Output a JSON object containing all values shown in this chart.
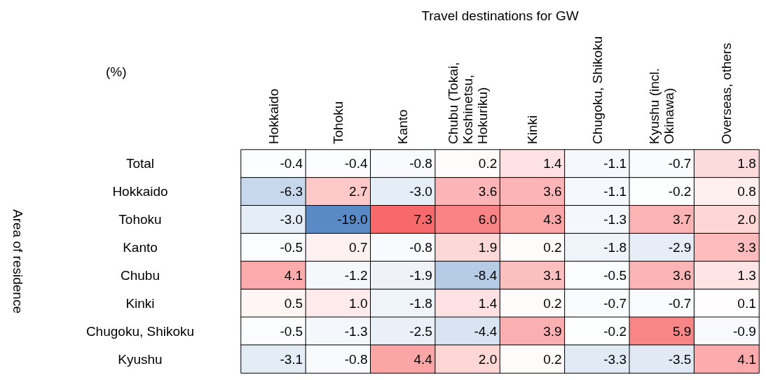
{
  "chart_data": {
    "type": "heatmap",
    "xlabel": "Travel destinations for GW",
    "ylabel": "Area of residence",
    "annotations": [
      "(%)"
    ],
    "categories": [
      "Hokkaido",
      "Tohoku",
      "Kanto",
      "Chubu (Tokai, Koshinetsu, Hokuriku)",
      "Kinki",
      "Chugoku, Shikoku",
      "Kyushu (incl. Okinawa)",
      "Overseas, others"
    ],
    "y_categories": [
      "Total",
      "Hokkaido",
      "Tohoku",
      "Kanto",
      "Chubu",
      "Kinki",
      "Chugoku, Shikoku",
      "Kyushu"
    ],
    "cells": [
      [
        -0.4,
        -0.4,
        -0.8,
        0.2,
        1.4,
        -1.1,
        -0.7,
        1.8
      ],
      [
        -6.3,
        2.7,
        -3.0,
        3.6,
        3.6,
        -1.1,
        -0.2,
        0.8
      ],
      [
        -3.0,
        -19.0,
        7.3,
        6.0,
        4.3,
        -1.3,
        3.7,
        2.0
      ],
      [
        -0.5,
        0.7,
        -0.8,
        1.9,
        0.2,
        -1.8,
        -2.9,
        3.3
      ],
      [
        4.1,
        -1.2,
        -1.9,
        -8.4,
        3.1,
        -0.5,
        3.6,
        1.3
      ],
      [
        0.5,
        1.0,
        -1.8,
        1.4,
        0.2,
        -0.7,
        -0.7,
        0.1
      ],
      [
        -0.5,
        -1.3,
        -2.5,
        -4.4,
        3.9,
        -0.2,
        5.9,
        -0.9
      ],
      [
        -3.1,
        -0.8,
        4.4,
        2.0,
        0.2,
        -3.3,
        -3.5,
        4.1
      ]
    ],
    "cell_labels": [
      [
        "-0.4",
        "-0.4",
        "-0.8",
        "0.2",
        "1.4",
        "-1.1",
        "-0.7",
        "1.8"
      ],
      [
        "-6.3",
        "2.7",
        "-3.0",
        "3.6",
        "3.6",
        "-1.1",
        "-0.2",
        "0.8"
      ],
      [
        "-3.0",
        "-19.0",
        "7.3",
        "6.0",
        "4.3",
        "-1.3",
        "3.7",
        "2.0"
      ],
      [
        "-0.5",
        "0.7",
        "-0.8",
        "1.9",
        "0.2",
        "-1.8",
        "-2.9",
        "3.3"
      ],
      [
        "4.1",
        "-1.2",
        "-1.9",
        "-8.4",
        "3.1",
        "-0.5",
        "3.6",
        "1.3"
      ],
      [
        "0.5",
        "1.0",
        "-1.8",
        "1.4",
        "0.2",
        "-0.7",
        "-0.7",
        "0.1"
      ],
      [
        "-0.5",
        "-1.3",
        "-2.5",
        "-4.4",
        "3.9",
        "-0.2",
        "5.9",
        "-0.9"
      ],
      [
        "-3.1",
        "-0.8",
        "4.4",
        "2.0",
        "0.2",
        "-3.3",
        "-3.5",
        "4.1"
      ]
    ],
    "data_labels": true
  }
}
